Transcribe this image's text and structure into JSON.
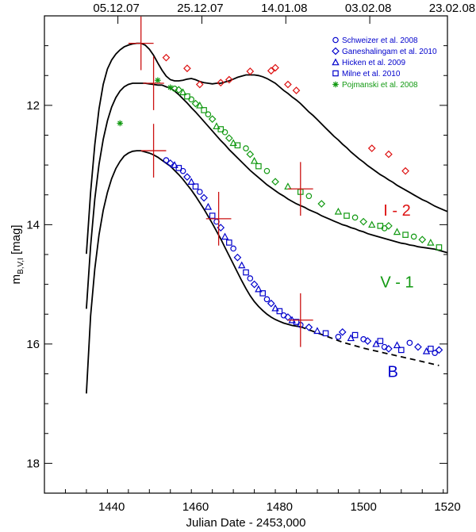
{
  "chart_data": {
    "type": "scatter",
    "title": "",
    "xlabel": "Julian Date - 2453,000",
    "ylabel_main": "m",
    "ylabel_sub": "B,V,I",
    "ylabel_unit": " [mag]",
    "xlim": [
      1424,
      1520
    ],
    "ylim": [
      18.5,
      10.5
    ],
    "xticks": [
      1440,
      1460,
      1480,
      1500,
      1520
    ],
    "yticks": [
      12,
      14,
      16,
      18
    ],
    "top_axis": {
      "labels": [
        {
          "text": "05.12.07",
          "x": 1441.5
        },
        {
          "text": "25.12.07",
          "x": 1461.5
        },
        {
          "text": "14.01.08",
          "x": 1481.5
        },
        {
          "text": "03.02.08",
          "x": 1501.5
        },
        {
          "text": "23.02.08",
          "x": 1521.5
        }
      ]
    },
    "colors": {
      "B": "#0000cc",
      "V": "#119911",
      "I": "#dd1111",
      "error": "#cc1111",
      "model": "#000000"
    },
    "legend": [
      {
        "label": "Schweizer et al. 2008",
        "marker": "circle",
        "color": "#0000cc"
      },
      {
        "label": "Ganeshalingam et al. 2010",
        "marker": "diamond",
        "color": "#0000cc"
      },
      {
        "label": "Hicken et al. 2009",
        "marker": "triangle",
        "color": "#0000cc"
      },
      {
        "label": "Milne et al. 2010",
        "marker": "square",
        "color": "#0000cc"
      },
      {
        "label": "Pojmanski et al. 2008",
        "marker": "asterisk",
        "color": "#119911"
      }
    ],
    "band_labels": [
      {
        "text": "I - 2",
        "color": "#dd1111",
        "x": 1508,
        "y": 13.85
      },
      {
        "text": "V - 1",
        "color": "#119911",
        "x": 1508,
        "y": 15.05
      },
      {
        "text": "B",
        "color": "#0000cc",
        "x": 1507,
        "y": 16.55
      }
    ],
    "series": [
      {
        "name": "I-2 model",
        "style": "solid",
        "x": [
          1434,
          1435,
          1436,
          1437,
          1438,
          1439,
          1440,
          1441,
          1442,
          1443,
          1444,
          1445,
          1446,
          1447,
          1448,
          1449,
          1450,
          1451,
          1452,
          1453,
          1454,
          1455,
          1456,
          1457,
          1458,
          1459,
          1460,
          1461,
          1462,
          1463,
          1464,
          1465,
          1466,
          1467,
          1468,
          1469,
          1470,
          1471,
          1472,
          1473,
          1474,
          1475,
          1476,
          1477,
          1478,
          1479,
          1480,
          1481,
          1482,
          1483,
          1484,
          1485,
          1486,
          1487,
          1488,
          1489,
          1490,
          1491,
          1492,
          1493,
          1494,
          1495,
          1496,
          1497,
          1498,
          1499,
          1500,
          1501,
          1502,
          1503,
          1504,
          1505,
          1506,
          1507,
          1508,
          1509,
          1510,
          1511,
          1512,
          1513,
          1514,
          1515,
          1516,
          1517,
          1518,
          1519,
          1520
        ],
        "y": [
          14.49,
          13.46,
          12.66,
          12.06,
          11.65,
          11.39,
          11.24,
          11.14,
          11.07,
          11.02,
          10.99,
          10.97,
          10.96,
          10.96,
          10.99,
          11.06,
          11.16,
          11.29,
          11.41,
          11.51,
          11.57,
          11.59,
          11.59,
          11.58,
          11.56,
          11.55,
          11.57,
          11.6,
          11.62,
          11.63,
          11.64,
          11.63,
          11.63,
          11.61,
          11.59,
          11.56,
          11.53,
          11.51,
          11.49,
          11.49,
          11.49,
          11.5,
          11.52,
          11.55,
          11.59,
          11.63,
          11.69,
          11.75,
          11.8,
          11.86,
          11.91,
          11.97,
          12.04,
          12.11,
          12.17,
          12.24,
          12.31,
          12.38,
          12.45,
          12.52,
          12.58,
          12.65,
          12.71,
          12.78,
          12.84,
          12.9,
          12.95,
          13.01,
          13.06,
          13.11,
          13.16,
          13.2,
          13.25,
          13.29,
          13.34,
          13.38,
          13.42,
          13.46,
          13.5,
          13.54,
          13.58,
          13.61,
          13.65,
          13.69,
          13.72,
          13.75,
          13.78
        ]
      },
      {
        "name": "V-1 model",
        "style": "solid",
        "x": [
          1434,
          1435,
          1436,
          1437,
          1438,
          1439,
          1440,
          1441,
          1442,
          1443,
          1444,
          1445,
          1446,
          1447,
          1448,
          1449,
          1450,
          1451,
          1452,
          1453,
          1454,
          1455,
          1456,
          1457,
          1458,
          1459,
          1460,
          1461,
          1462,
          1463,
          1464,
          1465,
          1466,
          1467,
          1468,
          1469,
          1470,
          1471,
          1472,
          1473,
          1474,
          1475,
          1476,
          1477,
          1478,
          1479,
          1480,
          1481,
          1482,
          1483,
          1484,
          1485,
          1486,
          1487,
          1488,
          1489,
          1490,
          1491,
          1492,
          1493,
          1494,
          1495,
          1496,
          1497,
          1498,
          1499,
          1500,
          1501,
          1502,
          1503,
          1504,
          1505,
          1506,
          1507,
          1508,
          1509,
          1510,
          1511,
          1512,
          1513,
          1514,
          1515,
          1516,
          1517,
          1518,
          1519,
          1520
        ],
        "y": [
          15.41,
          14.36,
          13.57,
          12.99,
          12.57,
          12.26,
          12.03,
          11.87,
          11.76,
          11.69,
          11.65,
          11.63,
          11.63,
          11.63,
          11.63,
          11.64,
          11.65,
          11.66,
          11.66,
          11.69,
          11.71,
          11.76,
          11.82,
          11.89,
          11.96,
          12.04,
          12.11,
          12.19,
          12.27,
          12.35,
          12.43,
          12.51,
          12.59,
          12.66,
          12.74,
          12.81,
          12.88,
          12.95,
          13.02,
          13.09,
          13.15,
          13.21,
          13.27,
          13.33,
          13.38,
          13.43,
          13.48,
          13.52,
          13.57,
          13.61,
          13.65,
          13.68,
          13.71,
          13.75,
          13.78,
          13.81,
          13.85,
          13.88,
          13.91,
          13.94,
          13.97,
          14.0,
          14.02,
          14.05,
          14.07,
          14.1,
          14.12,
          14.15,
          14.17,
          14.19,
          14.21,
          14.23,
          14.25,
          14.27,
          14.29,
          14.31,
          14.32,
          14.34,
          14.35,
          14.37,
          14.38,
          14.39,
          14.4,
          14.41,
          14.43,
          14.45,
          14.47
        ]
      },
      {
        "name": "B model",
        "style": "solid",
        "x": [
          1434,
          1435,
          1436,
          1437,
          1438,
          1439,
          1440,
          1441,
          1442,
          1443,
          1444,
          1445,
          1446,
          1447,
          1448,
          1449,
          1450,
          1451,
          1452,
          1453,
          1454,
          1455,
          1456,
          1457,
          1458,
          1459,
          1460,
          1461,
          1462,
          1463,
          1464,
          1465,
          1466,
          1467,
          1468,
          1469,
          1470,
          1471,
          1472,
          1473,
          1474,
          1475,
          1476,
          1477,
          1478,
          1479,
          1480,
          1481,
          1482,
          1483,
          1484,
          1485
        ],
        "y": [
          16.83,
          15.53,
          14.74,
          14.17,
          13.76,
          13.46,
          13.23,
          13.06,
          12.94,
          12.85,
          12.8,
          12.77,
          12.76,
          12.76,
          12.78,
          12.8,
          12.83,
          12.87,
          12.92,
          12.97,
          13.02,
          13.09,
          13.16,
          13.24,
          13.33,
          13.42,
          13.52,
          13.63,
          13.74,
          13.86,
          13.98,
          14.11,
          14.24,
          14.38,
          14.52,
          14.66,
          14.8,
          14.94,
          15.07,
          15.19,
          15.29,
          15.37,
          15.44,
          15.5,
          15.55,
          15.59,
          15.62,
          15.65,
          15.67,
          15.69,
          15.7,
          15.71
        ]
      },
      {
        "name": "B model extrapolation",
        "style": "dashed",
        "x": [
          1485,
          1490,
          1495,
          1500,
          1505,
          1510,
          1515,
          1518
        ],
        "y": [
          15.71,
          15.84,
          15.97,
          16.07,
          16.15,
          16.23,
          16.31,
          16.36
        ]
      },
      {
        "name": "I-2 data",
        "marker": "diamond",
        "color": "#dd1111",
        "x": [
          1453,
          1458,
          1461,
          1466,
          1468,
          1473,
          1478,
          1479,
          1482,
          1484,
          1502,
          1506,
          1510
        ],
        "y": [
          11.2,
          11.38,
          11.65,
          11.62,
          11.57,
          11.43,
          11.42,
          11.37,
          11.65,
          11.75,
          12.72,
          12.82,
          13.1
        ]
      },
      {
        "name": "V-1 Pojmanski",
        "marker": "asterisk",
        "color": "#119911",
        "x": [
          1442,
          1451,
          1454
        ],
        "y": [
          12.3,
          11.58,
          11.7
        ]
      },
      {
        "name": "V-1 data",
        "marker": "mixed",
        "color": "#119911",
        "x": [
          1455,
          1456,
          1457,
          1458,
          1459,
          1460,
          1461,
          1462,
          1463,
          1464,
          1465,
          1466,
          1467,
          1468,
          1469,
          1470,
          1472,
          1473,
          1474,
          1475,
          1477,
          1479,
          1482,
          1485,
          1487,
          1490,
          1494,
          1496,
          1498,
          1500,
          1502,
          1504,
          1505,
          1506,
          1508,
          1510,
          1512,
          1514,
          1516,
          1518
        ],
        "y": [
          11.72,
          11.74,
          11.78,
          11.85,
          11.9,
          11.97,
          12.0,
          12.08,
          12.15,
          12.23,
          12.35,
          12.4,
          12.45,
          12.55,
          12.63,
          12.67,
          12.72,
          12.82,
          12.93,
          13.02,
          13.1,
          13.28,
          13.36,
          13.45,
          13.52,
          13.65,
          13.78,
          13.85,
          13.88,
          13.95,
          14.0,
          14.02,
          14.06,
          14.02,
          14.12,
          14.17,
          14.2,
          14.25,
          14.3,
          14.38
        ]
      },
      {
        "name": "B data",
        "marker": "mixed",
        "color": "#0000cc",
        "x": [
          1453,
          1454,
          1455,
          1456,
          1457,
          1458,
          1459,
          1460,
          1461,
          1462,
          1463,
          1464,
          1465,
          1466,
          1467,
          1468,
          1469,
          1470,
          1471,
          1472,
          1473,
          1474,
          1475,
          1476,
          1477,
          1478,
          1479,
          1480,
          1481,
          1482,
          1483,
          1484,
          1485,
          1487,
          1489,
          1491,
          1494,
          1495,
          1497,
          1498,
          1500,
          1501,
          1503,
          1504,
          1505,
          1506,
          1508,
          1509,
          1511,
          1513,
          1515,
          1516,
          1517,
          1518
        ],
        "y": [
          12.92,
          12.97,
          13.0,
          13.05,
          13.1,
          13.2,
          13.28,
          13.36,
          13.45,
          13.55,
          13.7,
          13.85,
          13.95,
          14.05,
          14.2,
          14.3,
          14.4,
          14.55,
          14.68,
          14.8,
          14.9,
          15.0,
          15.08,
          15.15,
          15.25,
          15.32,
          15.4,
          15.45,
          15.52,
          15.55,
          15.6,
          15.63,
          15.68,
          15.72,
          15.78,
          15.82,
          15.88,
          15.8,
          15.9,
          15.85,
          15.92,
          15.95,
          16.0,
          15.95,
          16.05,
          16.08,
          16.02,
          16.1,
          15.98,
          16.05,
          16.12,
          16.08,
          16.15,
          16.1
        ]
      }
    ],
    "error_bars": [
      {
        "x": 1447.0,
        "y": 10.96,
        "xerr": 3.0,
        "yerr": 0.45
      },
      {
        "x": 1450.0,
        "y": 11.63,
        "xerr": 2.5,
        "yerr": 0.45
      },
      {
        "x": 1450.0,
        "y": 12.76,
        "xerr": 3.0,
        "yerr": 0.45
      },
      {
        "x": 1465.5,
        "y": 13.9,
        "xerr": 3.0,
        "yerr": 0.45
      },
      {
        "x": 1485.0,
        "y": 13.4,
        "xerr": 3.0,
        "yerr": 0.45
      },
      {
        "x": 1485.0,
        "y": 15.6,
        "xerr": 3.0,
        "yerr": 0.45
      }
    ]
  }
}
